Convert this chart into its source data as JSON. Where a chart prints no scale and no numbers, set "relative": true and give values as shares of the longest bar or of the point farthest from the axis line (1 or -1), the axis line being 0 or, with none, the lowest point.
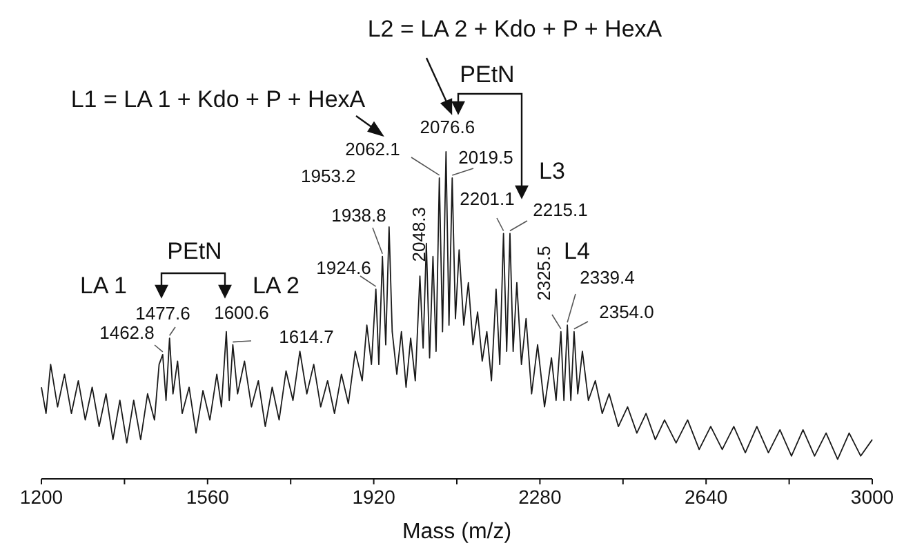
{
  "chart_data": {
    "type": "line",
    "relative": true,
    "xlabel": "Mass (m/z)",
    "xlim": [
      1200,
      3000
    ],
    "xticks": [
      1200,
      {
        "value": 1380,
        "label": null
      },
      1560,
      {
        "value": 1740,
        "label": null
      },
      1920,
      {
        "value": 2100,
        "label": null
      },
      2280,
      {
        "value": 2460,
        "label": null
      },
      2640,
      {
        "value": 2820,
        "label": null
      },
      3000
    ],
    "grid": false,
    "marker": "none",
    "line_style": "solid",
    "series": [
      {
        "color": "#1a1a1a",
        "x": [
          1200,
          1210,
          1220,
          1235,
          1250,
          1265,
          1280,
          1295,
          1310,
          1325,
          1340,
          1355,
          1370,
          1385,
          1400,
          1415,
          1430,
          1445,
          1455,
          1462.8,
          1470,
          1477.6,
          1485,
          1495,
          1505,
          1520,
          1535,
          1550,
          1565,
          1580,
          1590,
          1600.6,
          1607,
          1614.7,
          1625,
          1640,
          1655,
          1670,
          1685,
          1700,
          1715,
          1730,
          1745,
          1760,
          1775,
          1790,
          1805,
          1820,
          1835,
          1850,
          1865,
          1880,
          1895,
          1905,
          1915,
          1924.6,
          1931,
          1938.8,
          1946,
          1953.2,
          1960,
          1970,
          1980,
          1990,
          2000,
          2010,
          2020,
          2027,
          2034,
          2041,
          2048.3,
          2055,
          2062.1,
          2069,
          2076.6,
          2083,
          2090,
          2097,
          2105,
          2115,
          2125,
          2135,
          2145,
          2155,
          2165,
          2175,
          2185,
          2193,
          2201.1,
          2208,
          2215.1,
          2222,
          2230,
          2240,
          2250,
          2262,
          2275,
          2290,
          2305,
          2315,
          2325.5,
          2332,
          2339.4,
          2347,
          2354,
          2362,
          2372,
          2385,
          2400,
          2415,
          2430,
          2450,
          2470,
          2490,
          2510,
          2530,
          2550,
          2575,
          2600,
          2625,
          2650,
          2675,
          2700,
          2725,
          2750,
          2775,
          2800,
          2825,
          2850,
          2875,
          2900,
          2925,
          2950,
          2975,
          3000
        ],
        "values": [
          0.28,
          0.2,
          0.35,
          0.22,
          0.32,
          0.2,
          0.3,
          0.18,
          0.28,
          0.16,
          0.26,
          0.12,
          0.24,
          0.11,
          0.24,
          0.12,
          0.26,
          0.18,
          0.35,
          0.38,
          0.24,
          0.43,
          0.26,
          0.36,
          0.2,
          0.28,
          0.14,
          0.27,
          0.18,
          0.32,
          0.22,
          0.45,
          0.24,
          0.41,
          0.26,
          0.36,
          0.22,
          0.3,
          0.16,
          0.28,
          0.18,
          0.33,
          0.24,
          0.39,
          0.26,
          0.35,
          0.22,
          0.3,
          0.2,
          0.32,
          0.23,
          0.39,
          0.3,
          0.47,
          0.35,
          0.58,
          0.35,
          0.68,
          0.41,
          0.77,
          0.45,
          0.32,
          0.45,
          0.28,
          0.43,
          0.3,
          0.62,
          0.4,
          0.72,
          0.37,
          0.68,
          0.39,
          0.92,
          0.45,
          1,
          0.47,
          0.92,
          0.49,
          0.7,
          0.47,
          0.6,
          0.41,
          0.51,
          0.36,
          0.45,
          0.3,
          0.58,
          0.35,
          0.75,
          0.39,
          0.75,
          0.39,
          0.6,
          0.35,
          0.49,
          0.26,
          0.41,
          0.22,
          0.37,
          0.24,
          0.45,
          0.24,
          0.47,
          0.24,
          0.45,
          0.26,
          0.39,
          0.24,
          0.3,
          0.2,
          0.26,
          0.16,
          0.22,
          0.14,
          0.2,
          0.12,
          0.18,
          0.11,
          0.18,
          0.09,
          0.16,
          0.09,
          0.16,
          0.08,
          0.16,
          0.08,
          0.15,
          0.07,
          0.15,
          0.07,
          0.14,
          0.06,
          0.14,
          0.07,
          0.12
        ]
      }
    ],
    "annotations": [
      {
        "text": "1462.8",
        "x": 1462.8,
        "y": 0.38
      },
      {
        "text": "1477.6",
        "x": 1477.6,
        "y": 0.43
      },
      {
        "text": "1600.6",
        "x": 1600.6,
        "y": 0.45
      },
      {
        "text": "1614.7",
        "x": 1614.7,
        "y": 0.41
      },
      {
        "text": "1924.6",
        "x": 1924.6,
        "y": 0.58
      },
      {
        "text": "1938.8",
        "x": 1938.8,
        "y": 0.68
      },
      {
        "text": "1953.2",
        "x": 1953.2,
        "y": 0.77
      },
      {
        "text": "2048.3",
        "x": 2048.3,
        "y": 0.68
      },
      {
        "text": "2062.1",
        "x": 2062.1,
        "y": 0.92
      },
      {
        "text": "2076.6",
        "x": 2076.6,
        "y": 1
      },
      {
        "text": "2019.5",
        "x": 2090,
        "y": 0.92
      },
      {
        "text": "2201.1",
        "x": 2201.1,
        "y": 0.75
      },
      {
        "text": "2215.1",
        "x": 2215.1,
        "y": 0.75
      },
      {
        "text": "2325.5",
        "x": 2325.5,
        "y": 0.45
      },
      {
        "text": "2339.4",
        "x": 2339.4,
        "y": 0.47
      },
      {
        "text": "2354.0",
        "x": 2354,
        "y": 0.45
      },
      "LA 1",
      "LA 2",
      "PEtN",
      "L1 = LA 1 + Kdo + P + HexA",
      "L2 = LA 2 + Kdo + P + HexA",
      "PEtN",
      "L3",
      "L4"
    ]
  }
}
